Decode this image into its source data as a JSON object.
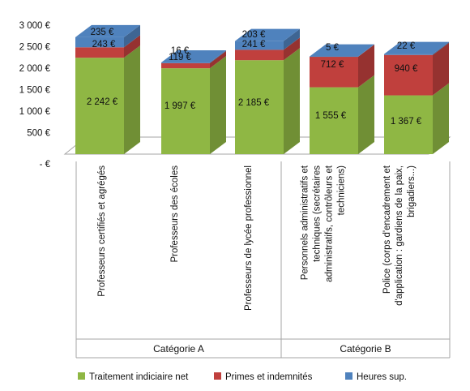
{
  "chart_data": {
    "type": "bar",
    "stacked": true,
    "style": "3d",
    "ylim": [
      0,
      3000
    ],
    "yticks": [
      0,
      500,
      1000,
      1500,
      2000,
      2500,
      3000
    ],
    "ytick_labels": [
      "-  €",
      "500 €",
      "1 000 €",
      "1 500 €",
      "2 000 €",
      "2 500 €",
      "3 000 €"
    ],
    "categories": [
      [
        "Professeurs certifiés et agrégés"
      ],
      [
        "Professeurs des écoles"
      ],
      [
        "Professeurs de lycée professionnel"
      ],
      [
        "Personnels administratifs et",
        "techniques (secrétaires",
        "administratifs, contrôleurs et",
        "techniciens)"
      ],
      [
        "Police (corps d'encadrement et",
        "d'application : gardiens de la paix,",
        "brigadiers...)"
      ]
    ],
    "groups": [
      {
        "label": "Catégorie A",
        "span": 3
      },
      {
        "label": "Catégorie B",
        "span": 2
      }
    ],
    "series": [
      {
        "name": "Traitement indiciaire net",
        "color": "#8fb744",
        "values": [
          2242,
          1997,
          2185,
          1555,
          1367
        ],
        "labels": [
          "2 242 €",
          "1 997 €",
          "2 185 €",
          "1 555 €",
          "1 367 €"
        ]
      },
      {
        "name": "Primes et indemnités",
        "color": "#c0403d",
        "values": [
          243,
          119,
          241,
          712,
          940
        ],
        "labels": [
          "243 €",
          "119 €",
          "241 €",
          "712 €",
          "940 €"
        ]
      },
      {
        "name": "Heures sup.",
        "color": "#4f82bd",
        "values": [
          235,
          16,
          203,
          5,
          22
        ],
        "labels": [
          "235 €",
          "16 €",
          "203 €",
          "5 €",
          "22 €"
        ]
      }
    ],
    "legend_position": "bottom",
    "grid": false
  }
}
